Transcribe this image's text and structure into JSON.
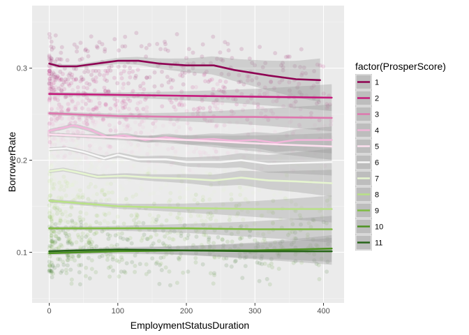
{
  "chart_data": {
    "type": "scatter",
    "xlabel": "EmploymentStatusDuration",
    "ylabel": "BorrowerRate",
    "xlim": [
      -25,
      430
    ],
    "ylim": [
      0.045,
      0.368
    ],
    "xticks": [
      0,
      100,
      200,
      300,
      400
    ],
    "xtick_labels": [
      "0",
      "100",
      "200",
      "300",
      "400"
    ],
    "yticks": [
      0.1,
      0.2,
      0.3
    ],
    "ytick_labels": [
      "0.1",
      "0.2",
      "0.3"
    ],
    "grid": true,
    "legend_position": "right",
    "legend": {
      "title": "factor(ProsperScore)",
      "entries": [
        "1",
        "2",
        "3",
        "4",
        "5",
        "6",
        "7",
        "8",
        "9",
        "10",
        "11"
      ]
    },
    "series": [
      {
        "name": "1",
        "color": "#8e0152",
        "x_max": 395,
        "points": [
          [
            0,
            0.305
          ],
          [
            15,
            0.302
          ],
          [
            40,
            0.302
          ],
          [
            70,
            0.305
          ],
          [
            100,
            0.308
          ],
          [
            130,
            0.308
          ],
          [
            160,
            0.305
          ],
          [
            200,
            0.303
          ],
          [
            240,
            0.303
          ],
          [
            270,
            0.298
          ],
          [
            320,
            0.292
          ],
          [
            360,
            0.288
          ],
          [
            395,
            0.287
          ]
        ]
      },
      {
        "name": "2",
        "color": "#c51b7d",
        "x_max": 412,
        "points": [
          [
            0,
            0.272
          ],
          [
            100,
            0.271
          ],
          [
            200,
            0.27
          ],
          [
            300,
            0.269
          ],
          [
            412,
            0.268
          ]
        ]
      },
      {
        "name": "3",
        "color": "#de77ae",
        "x_max": 412,
        "points": [
          [
            0,
            0.251
          ],
          [
            100,
            0.248
          ],
          [
            200,
            0.247
          ],
          [
            300,
            0.247
          ],
          [
            412,
            0.246
          ]
        ]
      },
      {
        "name": "4",
        "color": "#f1b6da",
        "x_max": 412,
        "points": [
          [
            0,
            0.232
          ],
          [
            20,
            0.235
          ],
          [
            35,
            0.238
          ],
          [
            60,
            0.233
          ],
          [
            85,
            0.225
          ],
          [
            110,
            0.227
          ],
          [
            140,
            0.222
          ],
          [
            170,
            0.225
          ],
          [
            200,
            0.222
          ],
          [
            240,
            0.223
          ],
          [
            270,
            0.221
          ],
          [
            300,
            0.222
          ],
          [
            330,
            0.219
          ],
          [
            360,
            0.222
          ],
          [
            412,
            0.222
          ]
        ]
      },
      {
        "name": "5",
        "color": "#fde0ef",
        "x_max": 412,
        "points": [
          [
            0,
            0.228
          ],
          [
            60,
            0.226
          ],
          [
            120,
            0.224
          ],
          [
            200,
            0.222
          ],
          [
            280,
            0.219
          ],
          [
            340,
            0.217
          ],
          [
            412,
            0.215
          ]
        ]
      },
      {
        "name": "6",
        "color": "#f7f7f7",
        "x_max": 412,
        "points": [
          [
            0,
            0.212
          ],
          [
            25,
            0.213
          ],
          [
            50,
            0.209
          ],
          [
            80,
            0.202
          ],
          [
            100,
            0.206
          ],
          [
            130,
            0.201
          ],
          [
            170,
            0.201
          ],
          [
            200,
            0.198
          ],
          [
            250,
            0.198
          ],
          [
            280,
            0.2
          ],
          [
            320,
            0.196
          ],
          [
            360,
            0.197
          ],
          [
            412,
            0.198
          ]
        ]
      },
      {
        "name": "7",
        "color": "#e6f5d0",
        "x_max": 412,
        "points": [
          [
            0,
            0.188
          ],
          [
            20,
            0.19
          ],
          [
            40,
            0.187
          ],
          [
            70,
            0.182
          ],
          [
            110,
            0.183
          ],
          [
            150,
            0.181
          ],
          [
            200,
            0.18
          ],
          [
            240,
            0.178
          ],
          [
            280,
            0.181
          ],
          [
            320,
            0.178
          ],
          [
            360,
            0.177
          ],
          [
            412,
            0.175
          ]
        ]
      },
      {
        "name": "8",
        "color": "#b8e186",
        "x_max": 412,
        "points": [
          [
            0,
            0.156
          ],
          [
            50,
            0.153
          ],
          [
            100,
            0.15
          ],
          [
            150,
            0.149
          ],
          [
            200,
            0.148
          ],
          [
            300,
            0.147
          ],
          [
            412,
            0.147
          ]
        ]
      },
      {
        "name": "9",
        "color": "#7fbc41",
        "x_max": 412,
        "points": [
          [
            0,
            0.126
          ],
          [
            100,
            0.126
          ],
          [
            200,
            0.126
          ],
          [
            300,
            0.125
          ],
          [
            412,
            0.125
          ]
        ]
      },
      {
        "name": "10",
        "color": "#4d9221",
        "x_max": 412,
        "points": [
          [
            0,
            0.099
          ],
          [
            100,
            0.101
          ],
          [
            200,
            0.102
          ],
          [
            300,
            0.102
          ],
          [
            412,
            0.104
          ]
        ]
      },
      {
        "name": "11",
        "color": "#276419",
        "x_max": 412,
        "points": [
          [
            0,
            0.101
          ],
          [
            40,
            0.102
          ],
          [
            100,
            0.103
          ],
          [
            200,
            0.102
          ],
          [
            300,
            0.101
          ],
          [
            412,
            0.101
          ]
        ]
      }
    ]
  }
}
